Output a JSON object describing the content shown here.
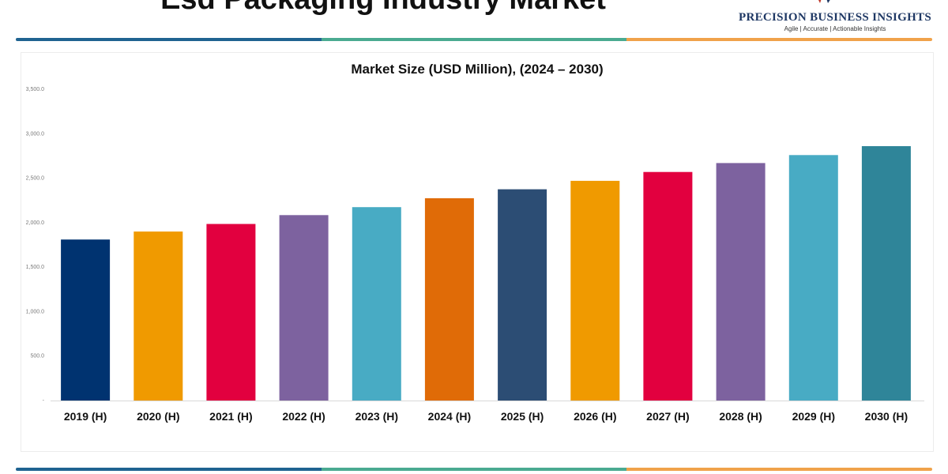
{
  "header": {
    "title": "Esd Packaging Industry Market",
    "brand_name": "PRECISION BUSINESS INSIGHTS",
    "brand_tagline": "Agile | Accurate | Actionable Insights"
  },
  "colors": {
    "rule_segments": [
      "#1f6391",
      "#4aaa91",
      "#f0a24a"
    ],
    "brand_text": "#1f3864"
  },
  "chart_data": {
    "type": "bar",
    "title": "Market Size (USD Million), (2024 – 2030)",
    "xlabel": "",
    "ylabel": "",
    "categories": [
      "2019 (H)",
      "2020 (H)",
      "2021 (H)",
      "2022 (H)",
      "2023 (H)",
      "2024 (H)",
      "2025 (H)",
      "2026 (H)",
      "2027 (H)",
      "2028 (H)",
      "2029 (H)",
      "2030 (H)"
    ],
    "values": [
      1810,
      1900,
      1985,
      2085,
      2175,
      2275,
      2375,
      2470,
      2570,
      2670,
      2760,
      2860
    ],
    "bar_colors": [
      "#003370",
      "#f09a00",
      "#e2003f",
      "#7d629f",
      "#48abc4",
      "#e06b07",
      "#2c4d74",
      "#f09a00",
      "#e2003f",
      "#7d629f",
      "#48abc4",
      "#2f8599"
    ],
    "ylim": [
      0,
      3500
    ],
    "yticks": [
      0,
      500,
      1000,
      1500,
      2000,
      2500,
      3000,
      3500
    ],
    "ytick_labels": [
      "-",
      "500.0",
      "1,000.0",
      "1,500.0",
      "2,000.0",
      "2,500.0",
      "3,000.0",
      "3,500.0"
    ],
    "grid": false,
    "legend": "none"
  }
}
